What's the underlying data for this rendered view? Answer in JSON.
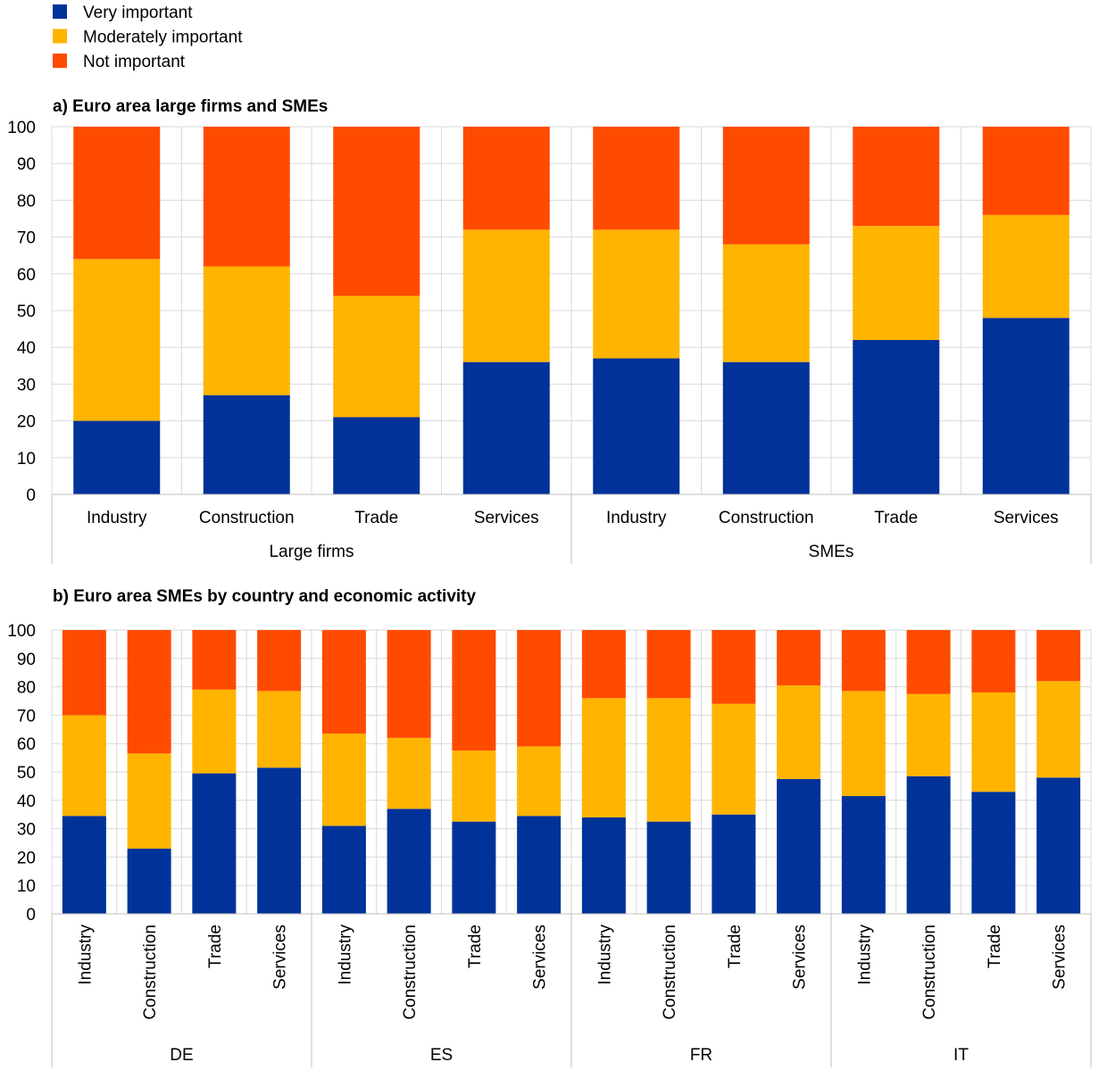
{
  "legend": {
    "items": [
      {
        "label": "Very important",
        "color": "#003299"
      },
      {
        "label": "Moderately important",
        "color": "#FFB400"
      },
      {
        "label": "Not important",
        "color": "#FF4B00"
      }
    ]
  },
  "chart_data": [
    {
      "type": "bar",
      "stacked": true,
      "title": "a) Euro area large firms and SMEs",
      "ylim": [
        0,
        100
      ],
      "yticks": [
        0,
        10,
        20,
        30,
        40,
        50,
        60,
        70,
        80,
        90,
        100
      ],
      "grid": true,
      "groups": [
        {
          "label": "Large firms",
          "categories": [
            "Industry",
            "Construction",
            "Trade",
            "Services"
          ]
        },
        {
          "label": "SMEs",
          "categories": [
            "Industry",
            "Construction",
            "Trade",
            "Services"
          ]
        }
      ],
      "series": [
        {
          "name": "Very important",
          "values": [
            20,
            27,
            21,
            36,
            37,
            36,
            42,
            48
          ]
        },
        {
          "name": "Moderately important",
          "values": [
            44,
            35,
            33,
            36,
            35,
            32,
            31,
            28
          ]
        },
        {
          "name": "Not important",
          "values": [
            36,
            38,
            46,
            28,
            28,
            32,
            27,
            24
          ]
        }
      ]
    },
    {
      "type": "bar",
      "stacked": true,
      "title": "b) Euro area SMEs by country and economic activity",
      "ylim": [
        0,
        100
      ],
      "yticks": [
        0,
        10,
        20,
        30,
        40,
        50,
        60,
        70,
        80,
        90,
        100
      ],
      "grid": true,
      "groups": [
        {
          "label": "DE",
          "categories": [
            "Industry",
            "Construction",
            "Trade",
            "Services"
          ]
        },
        {
          "label": "ES",
          "categories": [
            "Industry",
            "Construction",
            "Trade",
            "Services"
          ]
        },
        {
          "label": "FR",
          "categories": [
            "Industry",
            "Construction",
            "Trade",
            "Services"
          ]
        },
        {
          "label": "IT",
          "categories": [
            "Industry",
            "Construction",
            "Trade",
            "Services"
          ]
        }
      ],
      "series": [
        {
          "name": "Very important",
          "values": [
            34.5,
            23,
            49.5,
            51.5,
            31,
            37,
            32.5,
            34.5,
            34,
            32.5,
            35,
            47.5,
            41.5,
            48.5,
            43,
            48
          ]
        },
        {
          "name": "Moderately important",
          "values": [
            35.5,
            33.5,
            29.5,
            27,
            32.5,
            25,
            25,
            24.5,
            42,
            43.5,
            39,
            33,
            37,
            29,
            35,
            34
          ]
        },
        {
          "name": "Not important",
          "values": [
            30,
            43.5,
            21,
            21.5,
            36.5,
            38,
            42.5,
            41,
            24,
            24,
            26,
            19.5,
            21.5,
            22.5,
            22,
            18
          ]
        }
      ]
    }
  ]
}
